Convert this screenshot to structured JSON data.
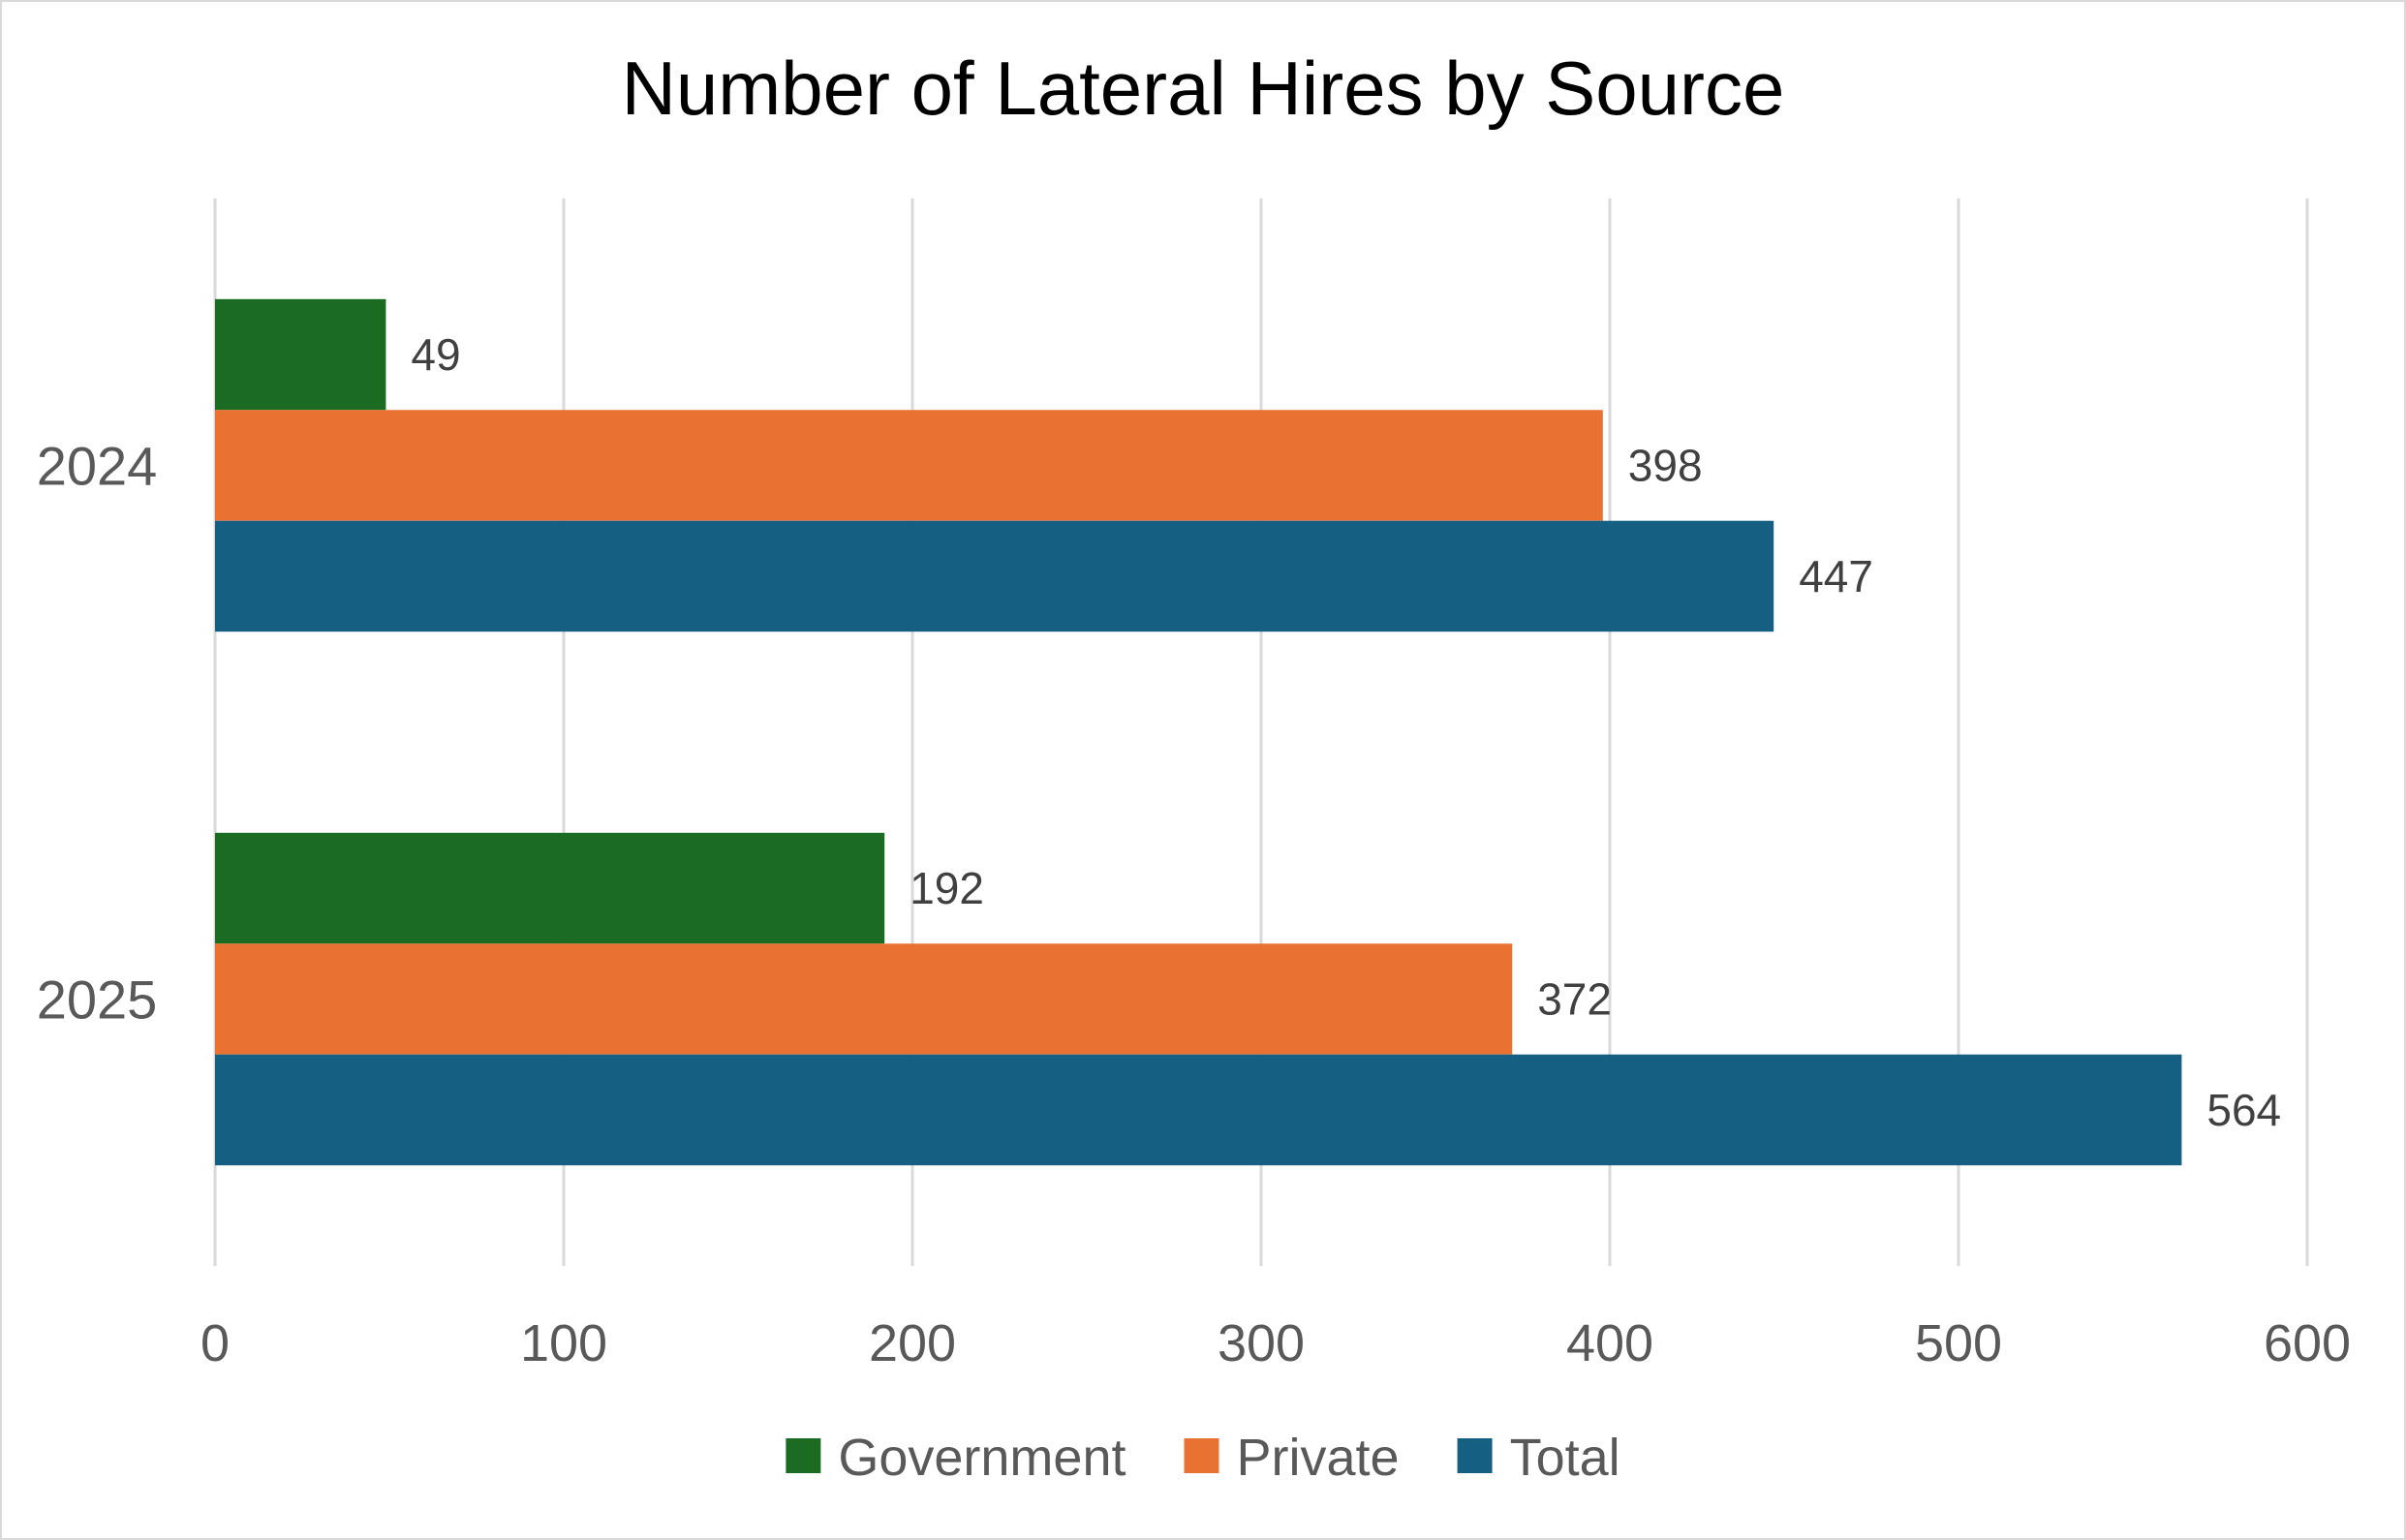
{
  "chart_data": {
    "type": "bar",
    "orientation": "horizontal",
    "title": "Number of Lateral Hires by Source",
    "categories": [
      "2024",
      "2025"
    ],
    "series": [
      {
        "name": "Government",
        "values": [
          49,
          192
        ],
        "color": "#1b6b23"
      },
      {
        "name": "Private",
        "values": [
          398,
          372
        ],
        "color": "#e97132"
      },
      {
        "name": "Total",
        "values": [
          447,
          564
        ],
        "color": "#156082"
      }
    ],
    "xlim": [
      0,
      600
    ],
    "xticks": [
      "0",
      "100",
      "200",
      "300",
      "400",
      "500",
      "600"
    ],
    "grid": true,
    "data_labels": true,
    "legend_position": "bottom"
  }
}
